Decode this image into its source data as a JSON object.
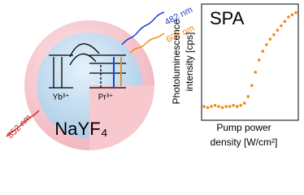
{
  "diagram": {
    "emission_blue": "482 nm",
    "emission_orange": "607 nm",
    "excitation": "852 nm",
    "ion_a": "Yb³⁺",
    "ion_b": "Pr³⁺",
    "host": "NaYF₄"
  },
  "chart_data": {
    "type": "scatter",
    "title": "SPA",
    "y_label": [
      "Photoluminescence",
      "intensity [cps]"
    ],
    "x_label": [
      "Pump power",
      "density [W/cm²]"
    ],
    "color": "#f08a1c",
    "x": [
      0,
      4,
      8,
      12,
      16,
      20,
      24,
      28,
      32,
      36,
      40,
      44,
      48,
      52,
      56,
      60,
      64,
      68,
      72,
      76,
      80,
      84,
      88,
      92,
      96,
      100
    ],
    "values": [
      11,
      10,
      11,
      12,
      11,
      10,
      11,
      11,
      12,
      11,
      12,
      14,
      20,
      30,
      42,
      53,
      61,
      67,
      72,
      76,
      80,
      84,
      88,
      92,
      94,
      96
    ],
    "xlim": [
      0,
      100
    ],
    "ylim": [
      0,
      100
    ]
  }
}
